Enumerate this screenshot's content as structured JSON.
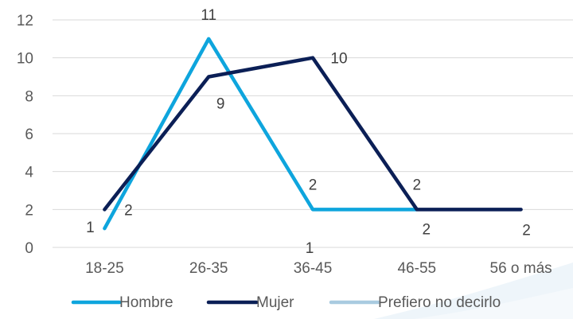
{
  "chart_data": {
    "type": "line",
    "title": "",
    "xlabel": "",
    "ylabel": "",
    "categories": [
      "18-25",
      "26-35",
      "36-45",
      "46-55",
      "56 o más"
    ],
    "ylim": [
      0,
      12
    ],
    "yticks": [
      0,
      2,
      4,
      6,
      8,
      10,
      12
    ],
    "ytick_labels": [
      "0",
      "2",
      "4",
      "6",
      "8",
      "10",
      "12"
    ],
    "grid": true,
    "legend_position": "bottom",
    "series": [
      {
        "name": "Hombre",
        "color": "#0ea5dd",
        "values": [
          1,
          11,
          2,
          2,
          null
        ],
        "labels": [
          "1",
          "11",
          "2",
          "2",
          ""
        ]
      },
      {
        "name": "Mujer",
        "color": "#0b1f56",
        "values": [
          2,
          9,
          10,
          2,
          2
        ],
        "labels": [
          "2",
          "9",
          "10",
          "2",
          "2"
        ]
      },
      {
        "name": "Prefiero no decirlo",
        "color": "#a9cbe0",
        "values": [
          null,
          null,
          1,
          null,
          null
        ],
        "labels": [
          "",
          "",
          "1",
          "",
          ""
        ]
      }
    ]
  }
}
